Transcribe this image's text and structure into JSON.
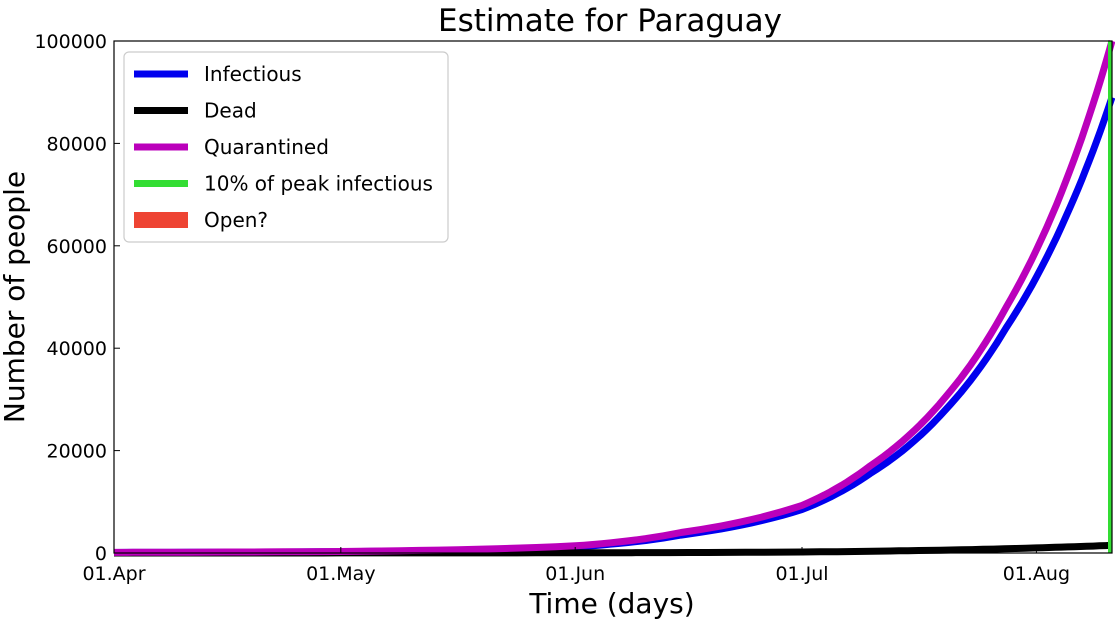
{
  "chart_data": {
    "type": "line",
    "title": "Estimate for Paraguay",
    "xlabel": "Time (days)",
    "ylabel": "Number of people",
    "x_range": [
      "2020-04-01",
      "2020-08-11"
    ],
    "ylim": [
      0,
      100000
    ],
    "x_ticks": [
      {
        "date": "2020-04-01",
        "label": "01.Apr"
      },
      {
        "date": "2020-05-01",
        "label": "01.May"
      },
      {
        "date": "2020-06-01",
        "label": "01.Jun"
      },
      {
        "date": "2020-07-01",
        "label": "01.Jul"
      },
      {
        "date": "2020-08-01",
        "label": "01.Aug"
      }
    ],
    "y_ticks": [
      {
        "value": 0,
        "label": "0"
      },
      {
        "value": 20000,
        "label": "20000"
      },
      {
        "value": 40000,
        "label": "40000"
      },
      {
        "value": 60000,
        "label": "60000"
      },
      {
        "value": 80000,
        "label": "80000"
      },
      {
        "value": 100000,
        "label": "100000"
      }
    ],
    "grid": false,
    "legend_position": "top-left",
    "series": [
      {
        "name": "Infectious",
        "color": "#0000ee",
        "kind": "line",
        "x": [
          "2020-04-01",
          "2020-05-01",
          "2020-06-01",
          "2020-06-15",
          "2020-07-01",
          "2020-07-10",
          "2020-07-20",
          "2020-07-28",
          "2020-08-05",
          "2020-08-11"
        ],
        "y": [
          100,
          250,
          1200,
          3500,
          8500,
          15500,
          28000,
          44000,
          66000,
          89000
        ]
      },
      {
        "name": "Dead",
        "color": "#000000",
        "kind": "line",
        "x": [
          "2020-04-01",
          "2020-05-01",
          "2020-06-01",
          "2020-07-01",
          "2020-07-15",
          "2020-08-01",
          "2020-08-11"
        ],
        "y": [
          0,
          10,
          40,
          200,
          450,
          1000,
          1500
        ]
      },
      {
        "name": "Quarantined",
        "color": "#bb00bb",
        "kind": "line",
        "x": [
          "2020-04-01",
          "2020-05-01",
          "2020-06-01",
          "2020-06-15",
          "2020-07-01",
          "2020-07-10",
          "2020-07-20",
          "2020-07-28",
          "2020-08-05",
          "2020-08-11"
        ],
        "y": [
          120,
          300,
          1400,
          4000,
          9300,
          17000,
          30500,
          48000,
          73000,
          100000
        ]
      },
      {
        "name": "10% of peak infectious",
        "color": "#33dd33",
        "kind": "vline",
        "x": "2020-08-11"
      },
      {
        "name": "Open?",
        "color": "#ee4433",
        "kind": "patch"
      }
    ]
  }
}
